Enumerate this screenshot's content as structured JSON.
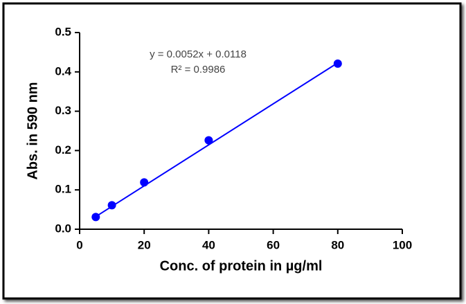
{
  "chart_data": {
    "type": "scatter",
    "x_label": "Conc. of protein in µg/ml",
    "y_label": "Abs. in 590 nm",
    "annotations": [
      "y = 0.0052x + 0.0118",
      "R² = 0.9986"
    ],
    "x": [
      5,
      10,
      20,
      40,
      80
    ],
    "series": [
      {
        "color": "#0000ff",
        "values": [
          0.031,
          0.061,
          0.119,
          0.226,
          0.421
        ]
      }
    ],
    "fit": {
      "x": [
        5,
        80
      ],
      "values": [
        0.032,
        0.423
      ],
      "color": "#0000ff"
    },
    "xlim": [
      0,
      100
    ],
    "xticks": [
      0,
      20,
      40,
      60,
      80,
      100
    ],
    "ylim": [
      0,
      0.5
    ],
    "yticks": [
      {
        "value": 0,
        "label": "0.0"
      },
      0.1,
      0.2,
      0.3,
      0.4,
      0.5
    ]
  }
}
